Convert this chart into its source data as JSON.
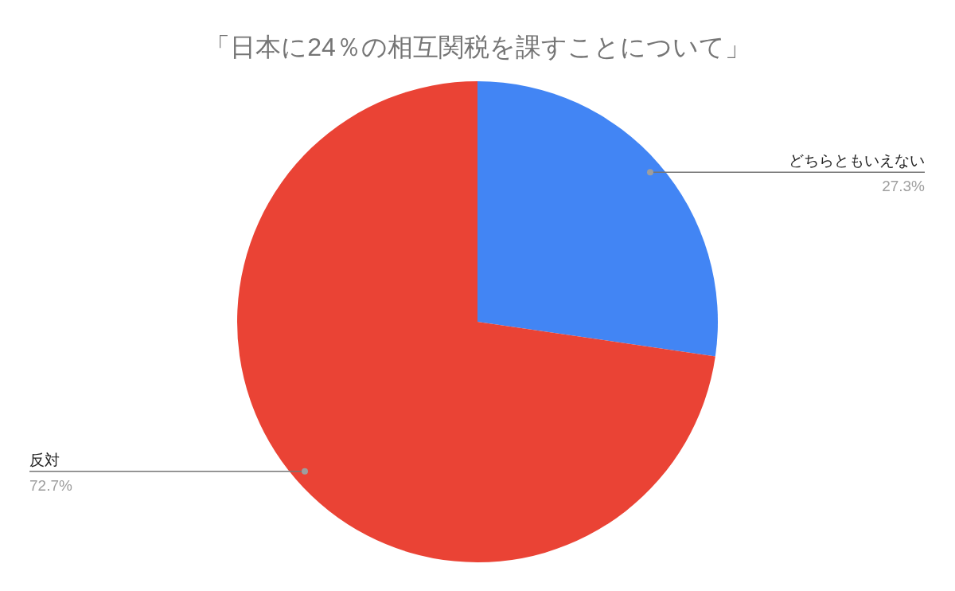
{
  "chart_data": {
    "type": "pie",
    "title": "「日本に24％の相互関税を課すことについて」",
    "categories": [
      "どちらともいえない",
      "反対"
    ],
    "values": [
      27.3,
      72.7
    ],
    "colors": [
      "#4285f4",
      "#ea4335"
    ],
    "value_labels": [
      "27.3%",
      "72.7%"
    ]
  }
}
